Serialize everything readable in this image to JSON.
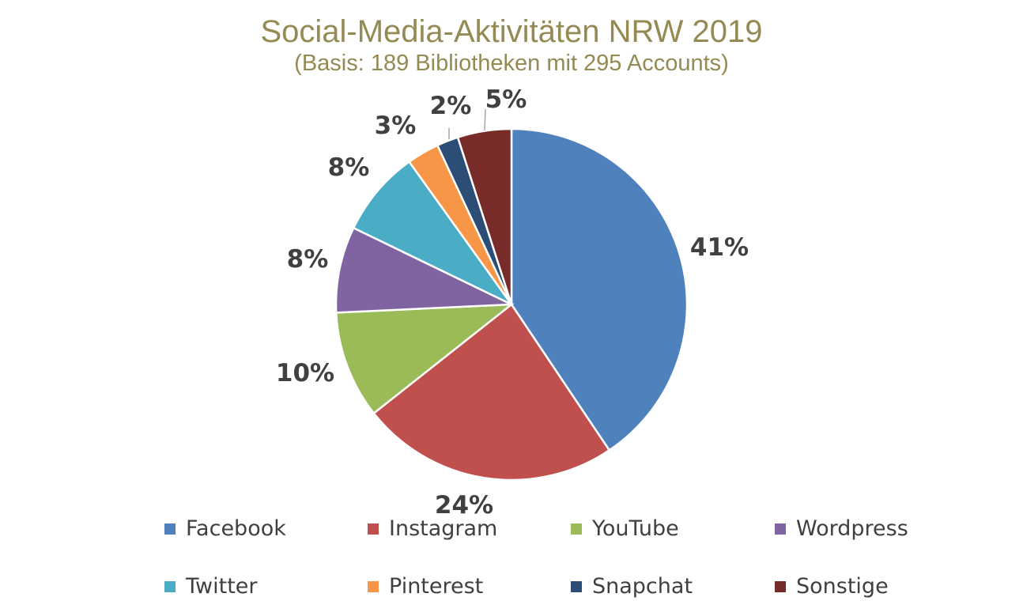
{
  "chart_data": {
    "type": "pie",
    "title": "Social-Media-Aktivitäten NRW 2019",
    "subtitle": "(Basis: 189 Bibliotheken mit 295 Accounts)",
    "categories": [
      "Facebook",
      "Instagram",
      "YouTube",
      "Wordpress",
      "Twitter",
      "Pinterest",
      "Snapchat",
      "Sonstige"
    ],
    "values": [
      41,
      24,
      10,
      8,
      8,
      3,
      2,
      5
    ],
    "labels": [
      "41%",
      "24%",
      "10%",
      "8%",
      "8%",
      "3%",
      "2%",
      "5%"
    ],
    "colors": [
      "#4F81BD",
      "#C0504D",
      "#9BBB59",
      "#8064A2",
      "#4BACC6",
      "#F79646",
      "#2C4D75",
      "#772C2A"
    ],
    "legend_position": "bottom"
  }
}
